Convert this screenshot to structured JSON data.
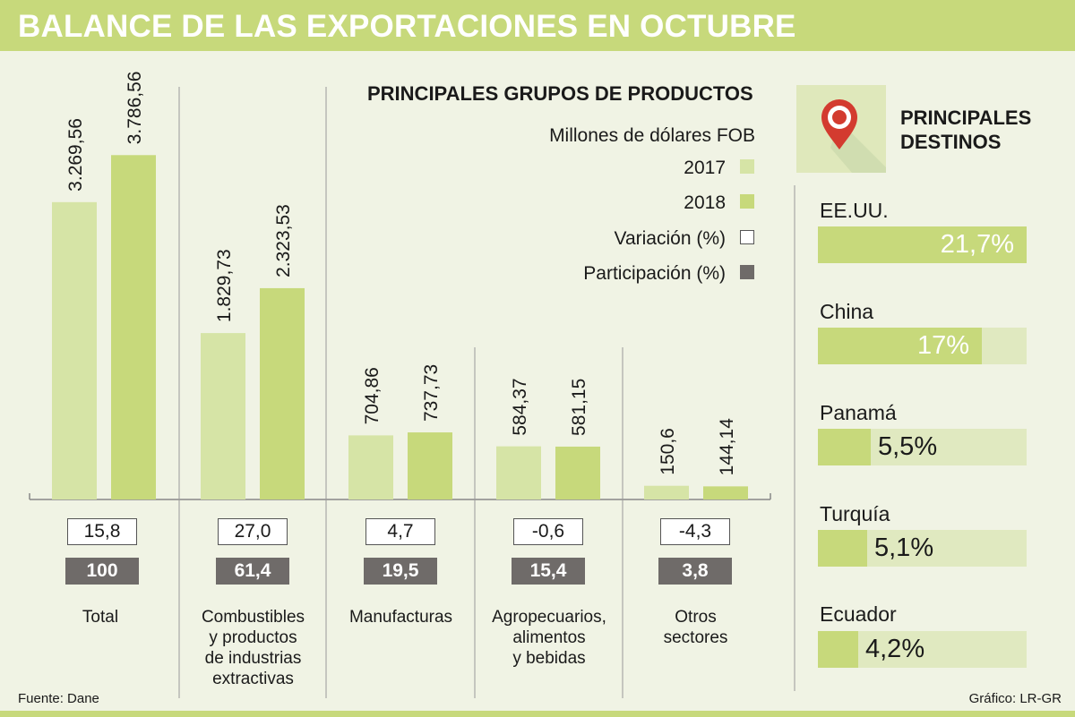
{
  "title": "BALANCE DE LAS EXPORTACIONES EN OCTUBRE",
  "legend": {
    "heading": "PRINCIPALES GRUPOS DE PRODUCTOS",
    "unit": "Millones de dólares FOB",
    "items": [
      {
        "label": "2017",
        "kind": "2017"
      },
      {
        "label": "2018",
        "kind": "2018"
      },
      {
        "label": "Variación (%)",
        "kind": "variacion"
      },
      {
        "label": "Participación (%)",
        "kind": "participacion"
      }
    ]
  },
  "colors": {
    "y2017": "#d6e4a6",
    "y2018": "#c7d97b",
    "participacion": "#6f6b69",
    "header": "#c7d97b",
    "background": "#f0f3e4"
  },
  "chart_data": [
    {
      "type": "bar",
      "title": "PRINCIPALES GRUPOS DE PRODUCTOS",
      "ylabel": "Millones de dólares FOB",
      "ylim": [
        0,
        4000
      ],
      "categories": [
        "Total",
        "Combustibles y productos de industrias extractivas",
        "Manufacturas",
        "Agropecuarios, alimentos y bebidas",
        "Otros sectores"
      ],
      "series": [
        {
          "name": "2017",
          "values": [
            3269.56,
            1829.73,
            704.86,
            584.37,
            150.6
          ],
          "labels": [
            "3.269,56",
            "1.829,73",
            "704,86",
            "584,37",
            "150,6"
          ]
        },
        {
          "name": "2018",
          "values": [
            3786.56,
            2323.53,
            737.73,
            581.15,
            144.14
          ],
          "labels": [
            "3.786,56",
            "2.323,53",
            "737,73",
            "581,15",
            "144,14"
          ]
        }
      ],
      "variacion": [
        "15,8",
        "27,0",
        "4,7",
        "-0,6",
        "-4,3"
      ],
      "participacion": [
        "100",
        "61,4",
        "19,5",
        "15,4",
        "3,8"
      ]
    },
    {
      "type": "bar",
      "title": "PRINCIPALES DESTINOS",
      "categories": [
        "EE.UU.",
        "China",
        "Panamá",
        "Turquía",
        "Ecuador"
      ],
      "values": [
        21.7,
        17,
        5.5,
        5.1,
        4.2
      ],
      "labels": [
        "21,7%",
        "17%",
        "5,5%",
        "5,1%",
        "4,2%"
      ],
      "xlim": [
        0,
        21.7
      ]
    }
  ],
  "category_lines": [
    [
      "Total"
    ],
    [
      "Combustibles",
      "y productos",
      "de industrias",
      "extractivas"
    ],
    [
      "Manufacturas"
    ],
    [
      "Agropecuarios,",
      "alimentos",
      "y bebidas"
    ],
    [
      "Otros",
      "sectores"
    ]
  ],
  "destinos": {
    "heading_lines": [
      "PRINCIPALES",
      "DESTINOS"
    ],
    "icon": "map-pin-icon"
  },
  "footer": {
    "source": "Fuente: Dane",
    "credit": "Gráfico: LR-GR"
  }
}
